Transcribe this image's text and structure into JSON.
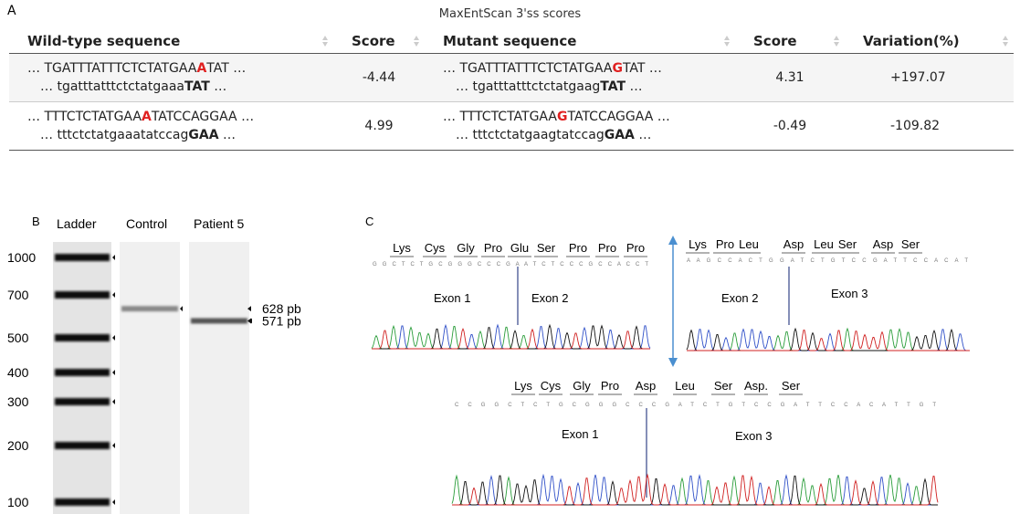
{
  "panel_a": {
    "label": "A",
    "title": "MaxEntScan 3'ss scores",
    "headers": [
      "Wild-type sequence",
      "Score",
      "Mutant sequence",
      "Score",
      "Variation(%)"
    ],
    "rows": [
      {
        "wild": [
          {
            "pre": "… TGATTTATTTCTCTATGAA",
            "mark": "A",
            "post": "TAT …"
          },
          {
            "pre": "… tgatttatttctctatgaaa",
            "mark": "TAT",
            "post": " …"
          }
        ],
        "score_wt": -4.44,
        "mutant": [
          {
            "pre": "… TGATTTATTTCTCTATGAA",
            "mark": "G",
            "post": "TAT …"
          },
          {
            "pre": "… tgatttatttctctatgaag",
            "mark": "TAT",
            "post": " …"
          }
        ],
        "score_mut": 4.31,
        "variation": "+197.07"
      },
      {
        "wild": [
          {
            "pre": "… TTTCTCTATGAA",
            "mark": "A",
            "post": "TATCCAGGAA …"
          },
          {
            "pre": "… tttctctatgaaatatccag",
            "mark": "GAA",
            "post": " …"
          }
        ],
        "score_wt": 4.99,
        "mutant": [
          {
            "pre": "… TTTCTCTATGAA",
            "mark": "G",
            "post": "TATCCAGGAA …"
          },
          {
            "pre": "… tttctctatgaagtatccag",
            "mark": "GAA",
            "post": " …"
          }
        ],
        "score_mut": -0.49,
        "variation": "-109.82"
      }
    ]
  },
  "panel_b": {
    "label": "B",
    "lanes": [
      "Ladder",
      "Control",
      "Patient 5"
    ],
    "ladder": [
      1000,
      700,
      500,
      400,
      300,
      200,
      100
    ],
    "bands": [
      {
        "value": 628,
        "label": "628 pb"
      },
      {
        "value": 571,
        "label": "571 pb"
      }
    ]
  },
  "panel_c": {
    "label": "C",
    "traces": [
      {
        "amino_acids": [
          "Lys",
          "Cys",
          "Gly",
          "Pro",
          "Glu",
          "Ser",
          "Pro",
          "Pro",
          "Pro"
        ],
        "bases": "G G C T C T G C G G G C C C G A A T C T C C C G C C A C C T",
        "exons": [
          "Exon 1",
          "Exon 2"
        ]
      },
      {
        "amino_acids": [
          "Lys",
          "Pro",
          "Leu",
          "Asp",
          "Leu",
          "Ser",
          "Asp",
          "Ser"
        ],
        "bases": "A A G C C A C T G G A T C T G T C C G A T T C C A C A T",
        "exons": [
          "Exon 2",
          "Exon 3"
        ]
      },
      {
        "amino_acids": [
          "Lys",
          "Cys",
          "Gly",
          "Pro",
          "Asp",
          "Leu",
          "Ser",
          "Asp.",
          "Ser"
        ],
        "bases": "C C G G C T C T G C G G G C C C G A T C T G T C C G A T T C C A C A T T G T",
        "exons": [
          "Exon 1",
          "Exon 3"
        ]
      }
    ]
  }
}
